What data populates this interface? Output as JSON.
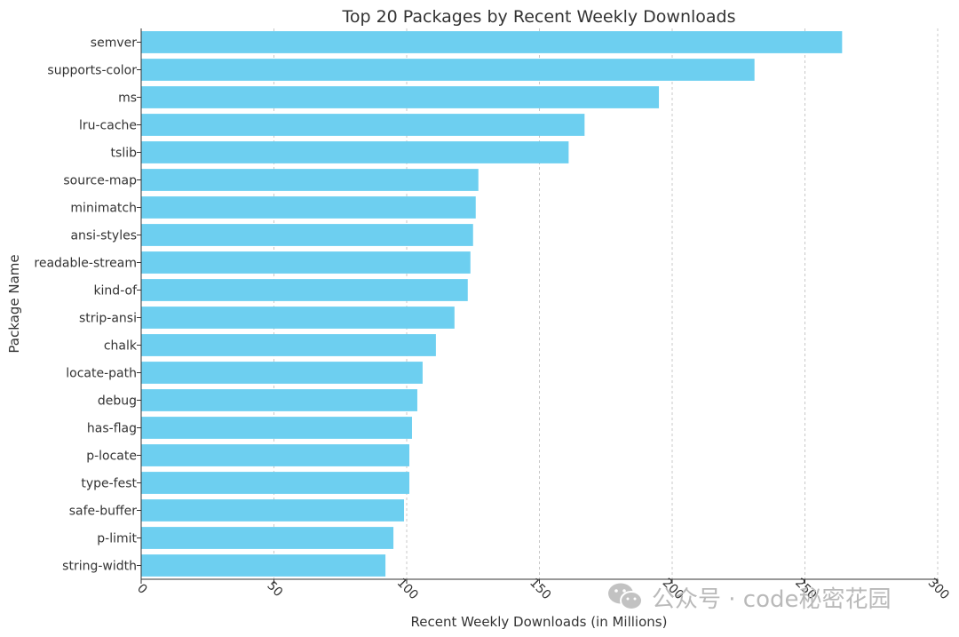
{
  "chart_data": {
    "type": "bar",
    "orientation": "horizontal",
    "title": "Top 20 Packages by Recent Weekly Downloads",
    "xlabel": "Recent Weekly Downloads (in Millions)",
    "ylabel": "Package Name",
    "xlim": [
      0,
      300
    ],
    "xticks": [
      0,
      50,
      100,
      150,
      200,
      250,
      300
    ],
    "grid": "x-dashed",
    "bar_color": "#6dcff0",
    "categories": [
      "semver",
      "supports-color",
      "ms",
      "lru-cache",
      "tslib",
      "source-map",
      "minimatch",
      "ansi-styles",
      "readable-stream",
      "kind-of",
      "strip-ansi",
      "chalk",
      "locate-path",
      "debug",
      "has-flag",
      "p-locate",
      "type-fest",
      "safe-buffer",
      "p-limit",
      "string-width"
    ],
    "values": [
      264,
      231,
      195,
      167,
      161,
      127,
      126,
      125,
      124,
      123,
      118,
      111,
      106,
      104,
      102,
      101,
      101,
      99,
      95,
      92
    ]
  },
  "watermark": {
    "text": "公众号 · code秘密花园",
    "icon": "wechat-icon"
  }
}
